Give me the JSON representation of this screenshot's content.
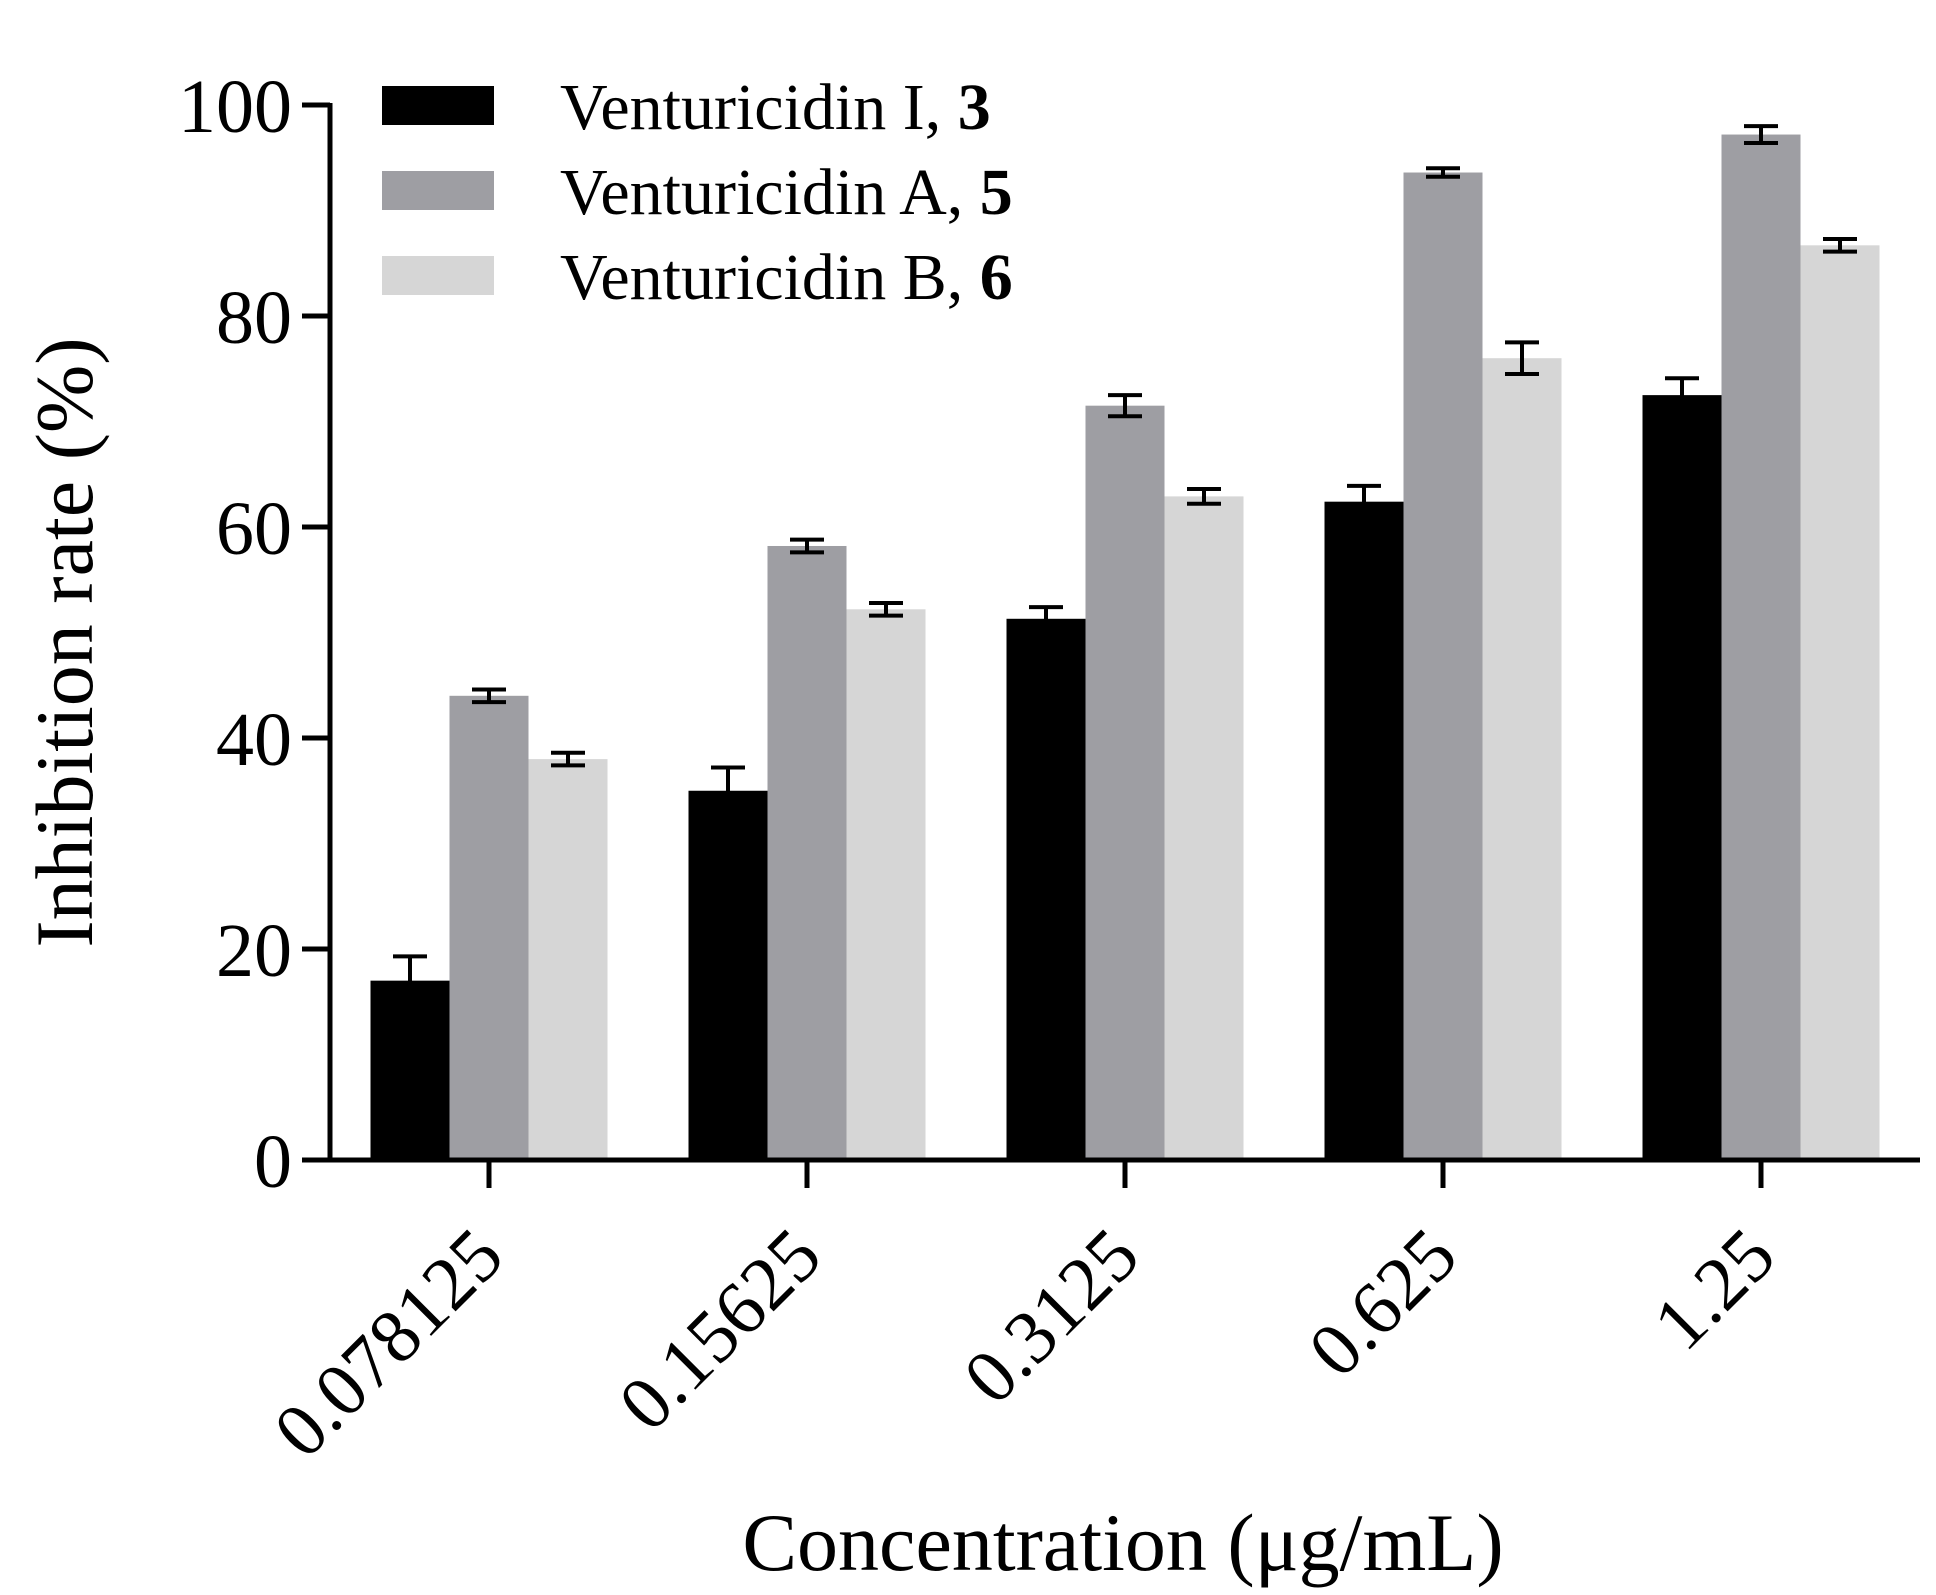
{
  "chart_data": {
    "type": "bar",
    "title": "",
    "xlabel": "Concentration (μg/mL)",
    "ylabel": "Inhibition rate (%)",
    "ylim": [
      0,
      100
    ],
    "yticks": [
      0,
      20,
      40,
      60,
      80,
      100
    ],
    "categories": [
      "0.078125",
      "0.15625",
      "0.3125",
      "0.625",
      "1.25"
    ],
    "legend_position": "top-left",
    "series": [
      {
        "name": "Venturicidin I, ",
        "number": "3",
        "color": "#000000",
        "values": [
          17.0,
          35.0,
          51.3,
          62.4,
          72.5
        ],
        "errors": [
          2.3,
          2.2,
          1.1,
          1.5,
          1.6
        ]
      },
      {
        "name": "Venturicidin A, ",
        "number": "5",
        "color": "#9e9ea3",
        "values": [
          44.0,
          58.2,
          71.5,
          93.6,
          97.2
        ],
        "errors": [
          0.6,
          0.6,
          1.0,
          0.4,
          0.8
        ]
      },
      {
        "name": "Venturicidin B, ",
        "number": "6",
        "color": "#d6d6d6",
        "values": [
          38.0,
          52.2,
          62.9,
          76.0,
          86.7
        ],
        "errors": [
          0.6,
          0.6,
          0.7,
          1.5,
          0.6
        ]
      }
    ]
  }
}
